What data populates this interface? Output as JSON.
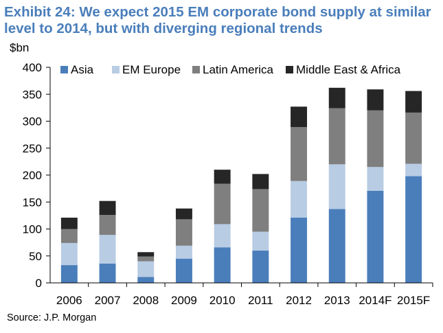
{
  "title_lines": [
    "Exhibit 24: We expect 2015 EM corporate bond supply at similar",
    "level to 2014, but with diverging regional trends"
  ],
  "source": "Source: J.P. Morgan",
  "chart_data": {
    "type": "bar",
    "stacked": true,
    "title": "Exhibit 24: We expect 2015 EM corporate bond supply at similar level to 2014, but with diverging regional trends",
    "xlabel": "",
    "ylabel": "$bn",
    "ylim": [
      0,
      400
    ],
    "yticks": [
      0,
      50,
      100,
      150,
      200,
      250,
      300,
      350,
      400
    ],
    "legend_position": "top",
    "grid": false,
    "categories": [
      "2006",
      "2007",
      "2008",
      "2009",
      "2010",
      "2011",
      "2012",
      "2013",
      "2014F",
      "2015F"
    ],
    "series": [
      {
        "name": "Asia",
        "color": "#4a7ebb",
        "values": [
          33,
          36,
          11,
          45,
          66,
          60,
          121,
          137,
          171,
          198
        ]
      },
      {
        "name": "EM Europe",
        "color": "#b8cce4",
        "values": [
          41,
          53,
          29,
          24,
          43,
          35,
          68,
          83,
          44,
          23
        ]
      },
      {
        "name": "Latin America",
        "color": "#7f7f7f",
        "values": [
          26,
          37,
          9,
          49,
          75,
          79,
          100,
          104,
          105,
          95
        ]
      },
      {
        "name": "Middle East & Africa",
        "color": "#262626",
        "values": [
          21,
          26,
          8,
          20,
          26,
          28,
          38,
          38,
          39,
          40
        ]
      }
    ]
  }
}
